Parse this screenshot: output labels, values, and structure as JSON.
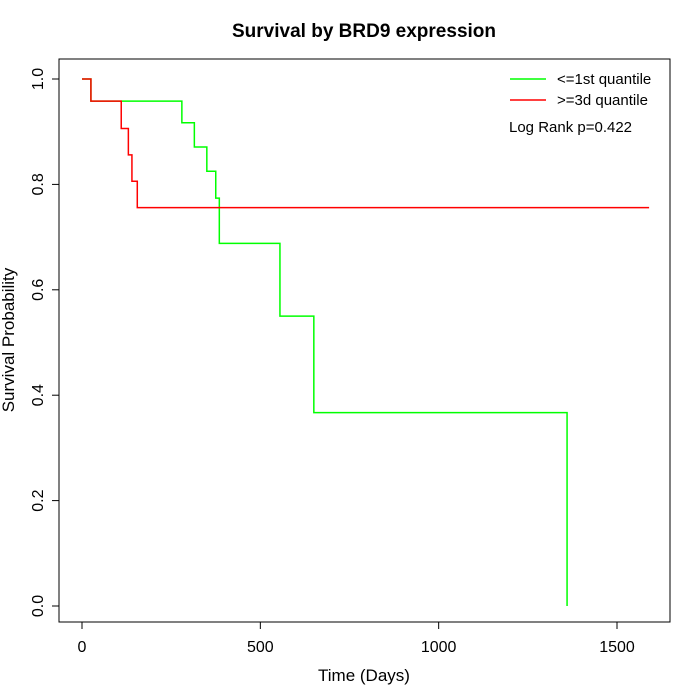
{
  "chart_data": {
    "type": "line",
    "subtype": "step",
    "title": "Survival by BRD9 expression",
    "xlabel": "Time (Days)",
    "ylabel": "Survival Probability",
    "xlim": [
      0,
      1600
    ],
    "ylim": [
      0,
      1.0
    ],
    "xticks": [
      0,
      500,
      1000,
      1500
    ],
    "yticks": [
      0.0,
      0.2,
      0.4,
      0.6,
      0.8,
      1.0
    ],
    "xtick_labels": [
      "0",
      "500",
      "1000",
      "1500"
    ],
    "ytick_labels": [
      "0.0",
      "0.2",
      "0.4",
      "0.6",
      "0.8",
      "1.0"
    ],
    "grid": false,
    "legend_position": "top-right",
    "annotation": "Log Rank p=0.422",
    "series": [
      {
        "name": "<=1st quantile",
        "color": "#00ff00",
        "x": [
          0,
          25,
          280,
          315,
          350,
          375,
          385,
          555,
          650,
          1360,
          1360
        ],
        "y": [
          1.0,
          0.958,
          0.917,
          0.871,
          0.825,
          0.774,
          0.688,
          0.55,
          0.367,
          0.367,
          0.0
        ]
      },
      {
        "name": ">=3d quantile",
        "color": "#ff0000",
        "x": [
          0,
          25,
          110,
          130,
          140,
          155,
          1590
        ],
        "y": [
          1.0,
          0.958,
          0.906,
          0.856,
          0.806,
          0.756,
          0.756
        ]
      }
    ]
  }
}
